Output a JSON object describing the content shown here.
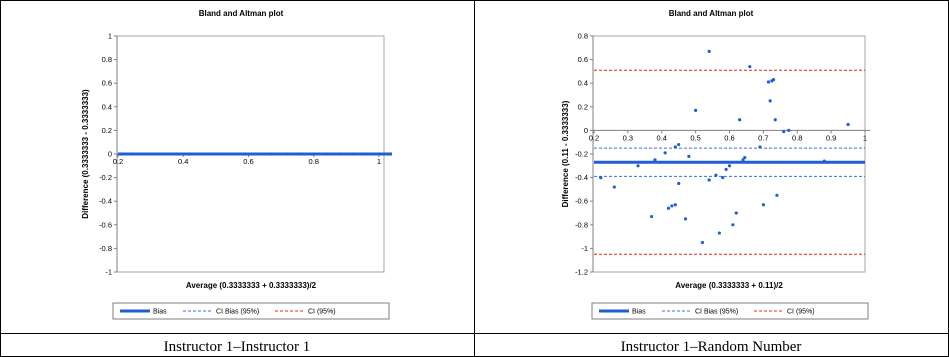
{
  "captions": [
    "Instructor 1–Instructor 1",
    "Instructor 1–Random Number"
  ],
  "legend_labels": [
    "Bias",
    "CI Bias (95%)",
    "CI (95%)"
  ],
  "colors": {
    "bias": "#1f5fd1",
    "ci_bias": "#3a6fd8",
    "ci": "#e0241b",
    "points": "#1f5fd1",
    "border": "#000000"
  },
  "chart_data": [
    {
      "type": "scatter",
      "title": "Bland and Altman plot",
      "xlabel": "Average (0.3333333 + 0.3333333)/2",
      "ylabel": "Difference (0.3333333 - 0.3333333)",
      "xlim": [
        0.2,
        1.0
      ],
      "ylim": [
        -1,
        1
      ],
      "xticks": [
        0.2,
        0.4,
        0.6,
        0.8,
        1.0
      ],
      "xtick_labels": [
        "0.2",
        "0.4",
        "0.6",
        "0.8",
        "1"
      ],
      "yticks": [
        -1,
        -0.8,
        -0.6,
        -0.4,
        -0.2,
        0,
        0.2,
        0.4,
        0.6,
        0.8,
        1
      ],
      "ytick_labels": [
        "-1",
        "-0.8",
        "-0.6",
        "-0.4",
        "-0.2",
        "0",
        "0.2",
        "0.4",
        "0.6",
        "0.8",
        "1"
      ],
      "bias": 0,
      "ci_bias": [
        0,
        0
      ],
      "ci": [
        0,
        0
      ],
      "line_extent": [
        0.2,
        1.04
      ],
      "points": [
        {
          "x": 0.21,
          "y": 0
        },
        {
          "x": 0.24,
          "y": 0
        },
        {
          "x": 0.38,
          "y": 0
        },
        {
          "x": 0.42,
          "y": 0
        },
        {
          "x": 0.5,
          "y": 0
        },
        {
          "x": 0.59,
          "y": 0
        },
        {
          "x": 0.67,
          "y": 0
        },
        {
          "x": 0.72,
          "y": 0
        },
        {
          "x": 0.76,
          "y": 0
        },
        {
          "x": 0.8,
          "y": 0
        },
        {
          "x": 0.84,
          "y": 0
        },
        {
          "x": 0.88,
          "y": 0
        },
        {
          "x": 0.92,
          "y": 0
        },
        {
          "x": 0.96,
          "y": 0
        },
        {
          "x": 1.0,
          "y": 0
        },
        {
          "x": 1.03,
          "y": 0
        }
      ],
      "grid": false,
      "legend": "bottom"
    },
    {
      "type": "scatter",
      "title": "Bland and Altman plot",
      "xlabel": "Average (0.3333333 + 0.11)/2",
      "ylabel": "Difference (0.11 - 0.3333333)",
      "xlim": [
        0.2,
        1.0
      ],
      "ylim": [
        -1.2,
        0.8
      ],
      "xticks": [
        0.2,
        0.3,
        0.4,
        0.5,
        0.6,
        0.7,
        0.8,
        0.9,
        1.0
      ],
      "xtick_labels": [
        "0.2",
        "0.3",
        "0.4",
        "0.5",
        "0.6",
        "0.7",
        "0.8",
        "0.9",
        "1"
      ],
      "yticks": [
        -1.2,
        -1.0,
        -0.8,
        -0.6,
        -0.4,
        -0.2,
        0,
        0.2,
        0.4,
        0.6,
        0.8
      ],
      "ytick_labels": [
        "-1.2",
        "-1",
        "-0.8",
        "-0.6",
        "-0.4",
        "-0.2",
        "0",
        "0.2",
        "0.4",
        "0.6",
        "0.8"
      ],
      "bias": -0.27,
      "ci_bias": [
        -0.15,
        -0.39
      ],
      "ci": [
        0.51,
        -1.05
      ],
      "line_extent": [
        0.2,
        1.0
      ],
      "points": [
        {
          "x": 0.22,
          "y": -0.4
        },
        {
          "x": 0.26,
          "y": -0.48
        },
        {
          "x": 0.33,
          "y": -0.3
        },
        {
          "x": 0.37,
          "y": -0.73
        },
        {
          "x": 0.38,
          "y": -0.25
        },
        {
          "x": 0.41,
          "y": -0.19
        },
        {
          "x": 0.42,
          "y": -0.66
        },
        {
          "x": 0.43,
          "y": -0.64
        },
        {
          "x": 0.44,
          "y": -0.14
        },
        {
          "x": 0.45,
          "y": -0.12
        },
        {
          "x": 0.44,
          "y": -0.63
        },
        {
          "x": 0.45,
          "y": -0.45
        },
        {
          "x": 0.47,
          "y": -0.75
        },
        {
          "x": 0.48,
          "y": -0.22
        },
        {
          "x": 0.5,
          "y": 0.17
        },
        {
          "x": 0.52,
          "y": -0.95
        },
        {
          "x": 0.54,
          "y": 0.67
        },
        {
          "x": 0.54,
          "y": -0.42
        },
        {
          "x": 0.56,
          "y": -0.38
        },
        {
          "x": 0.57,
          "y": -0.87
        },
        {
          "x": 0.58,
          "y": -0.4
        },
        {
          "x": 0.59,
          "y": -0.33
        },
        {
          "x": 0.6,
          "y": -0.3
        },
        {
          "x": 0.61,
          "y": -0.8
        },
        {
          "x": 0.62,
          "y": -0.7
        },
        {
          "x": 0.63,
          "y": 0.09
        },
        {
          "x": 0.64,
          "y": -0.25
        },
        {
          "x": 0.645,
          "y": -0.23
        },
        {
          "x": 0.66,
          "y": 0.54
        },
        {
          "x": 0.69,
          "y": -0.14
        },
        {
          "x": 0.7,
          "y": -0.63
        },
        {
          "x": 0.715,
          "y": 0.41
        },
        {
          "x": 0.72,
          "y": 0.25
        },
        {
          "x": 0.725,
          "y": 0.42
        },
        {
          "x": 0.73,
          "y": 0.43
        },
        {
          "x": 0.735,
          "y": 0.09
        },
        {
          "x": 0.74,
          "y": -0.55
        },
        {
          "x": 0.76,
          "y": -0.01
        },
        {
          "x": 0.775,
          "y": 0.0
        },
        {
          "x": 0.88,
          "y": -0.26
        },
        {
          "x": 0.95,
          "y": 0.05
        }
      ],
      "grid": false,
      "legend": "bottom"
    }
  ]
}
